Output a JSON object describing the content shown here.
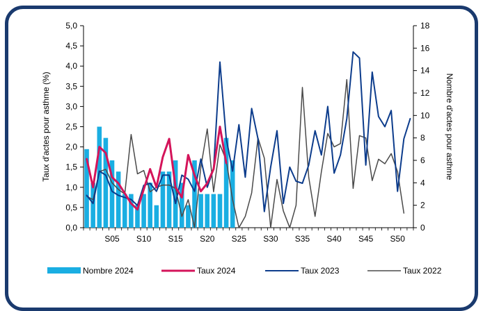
{
  "chart_data": {
    "type": "bar+line",
    "left_axis": {
      "label": "Taux d'actes pour asthme (%)",
      "min": 0,
      "max": 5,
      "step": 0.5,
      "tick_labels": [
        "0,0",
        "0,5",
        "1,0",
        "1,5",
        "2,0",
        "2,5",
        "3,0",
        "3,5",
        "4,0",
        "4,5",
        "5,0"
      ]
    },
    "right_axis": {
      "label": "Nombre d'actes pour asthme",
      "min": 0,
      "max": 18,
      "step": 2,
      "tick_labels": [
        "0",
        "2",
        "4",
        "6",
        "8",
        "10",
        "12",
        "14",
        "16",
        "18"
      ]
    },
    "x_axis": {
      "weeks": 52,
      "tick_labels": [
        {
          "week": 5,
          "label": "S05"
        },
        {
          "week": 10,
          "label": "S10"
        },
        {
          "week": 15,
          "label": "S15"
        },
        {
          "week": 20,
          "label": "S20"
        },
        {
          "week": 25,
          "label": "S25"
        },
        {
          "week": 30,
          "label": "S30"
        },
        {
          "week": 35,
          "label": "S35"
        },
        {
          "week": 40,
          "label": "S40"
        },
        {
          "week": 45,
          "label": "S45"
        },
        {
          "week": 50,
          "label": "S50"
        }
      ]
    },
    "series": [
      {
        "name": "Nombre 2024",
        "kind": "bar",
        "axis": "right",
        "color": "#1aaee2",
        "values": [
          7,
          4,
          9,
          8,
          6,
          5,
          3,
          3,
          2,
          3,
          4,
          2,
          5,
          5,
          6,
          4,
          2,
          6,
          3,
          3,
          3,
          3,
          8,
          6
        ]
      },
      {
        "name": "Taux 2024",
        "kind": "line",
        "axis": "left",
        "color": "#d4145a",
        "width": 3,
        "values": [
          1.7,
          1.0,
          2.0,
          1.85,
          1.25,
          1.1,
          0.85,
          0.6,
          0.45,
          0.95,
          1.45,
          1.0,
          1.75,
          2.2,
          1.0,
          0.75,
          1.8,
          1.3,
          0.9,
          1.1,
          1.45,
          2.5,
          1.6
        ]
      },
      {
        "name": "Taux 2023",
        "kind": "line",
        "axis": "left",
        "color": "#0c3c8c",
        "width": 2,
        "values": [
          0.8,
          0.6,
          1.4,
          1.3,
          0.9,
          0.8,
          0.75,
          0.7,
          0.55,
          1.05,
          1.1,
          0.9,
          1.3,
          1.3,
          0.6,
          1.3,
          1.2,
          0.9,
          1.7,
          1.0,
          1.45,
          4.1,
          2.2,
          1.4,
          2.55,
          1.25,
          2.95,
          2.2,
          0.4,
          1.5,
          2.4,
          0.6,
          1.5,
          1.15,
          1.1,
          1.55,
          2.4,
          1.8,
          3.0,
          1.35,
          1.8,
          2.7,
          4.35,
          4.2,
          1.55,
          3.85,
          2.75,
          2.5,
          2.9,
          0.9,
          2.2,
          2.7
        ]
      },
      {
        "name": "Taux 2022",
        "kind": "line",
        "axis": "right",
        "color": "#4a4a4a",
        "width": 1.5,
        "values": [
          2.8,
          2.5,
          5.0,
          5.2,
          4.0,
          3.4,
          3.0,
          8.3,
          4.8,
          5.1,
          3.2,
          3.6,
          3.8,
          3.8,
          3.5,
          1.0,
          2.5,
          0.0,
          5.4,
          8.8,
          3.2,
          7.4,
          6.0,
          2.5,
          0.0,
          1.0,
          3.1,
          8.0,
          6.2,
          0.0,
          4.3,
          1.5,
          0.0,
          2.0,
          12.5,
          4.5,
          1.0,
          5.0,
          8.4,
          7.2,
          7.5,
          13.2,
          3.5,
          8.2,
          8.0,
          4.2,
          6.1,
          5.7,
          6.6,
          5.0,
          1.3
        ]
      }
    ],
    "legend": [
      "Nombre 2024",
      "Taux 2024",
      "Taux 2023",
      "Taux 2022"
    ],
    "legend_position": "bottom"
  }
}
